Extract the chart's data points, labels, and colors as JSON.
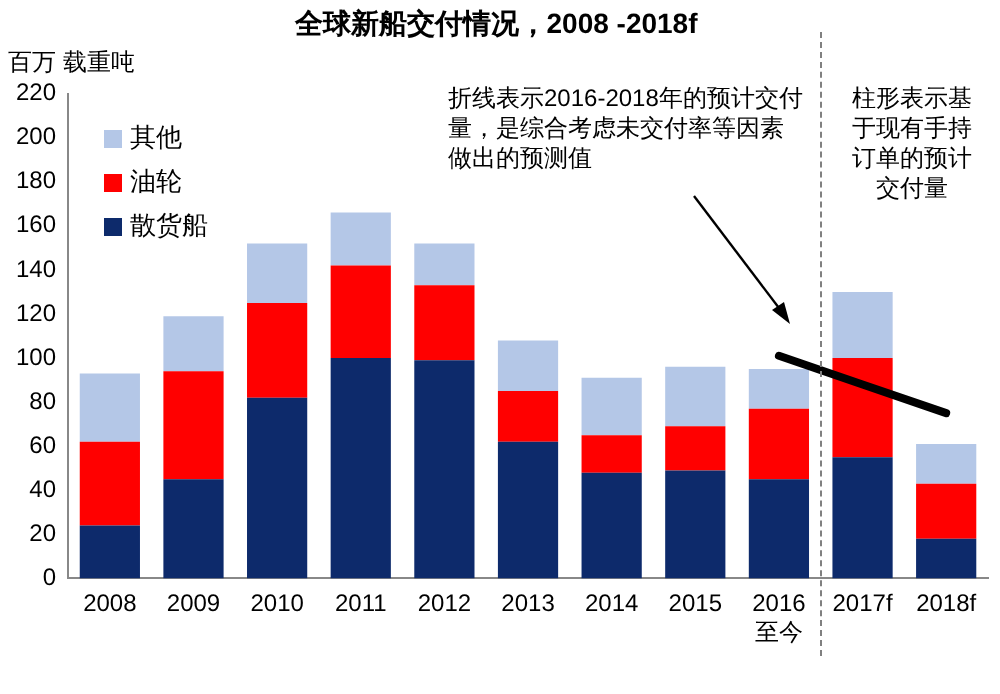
{
  "chart_data": {
    "type": "bar",
    "title": "全球新船交付情况，2008 -2018f",
    "ylabel": "百万 载重吨",
    "categories": [
      "2008",
      "2009",
      "2010",
      "2011",
      "2012",
      "2013",
      "2014",
      "2015",
      "2016\n至今",
      "2017f",
      "2018f"
    ],
    "stacked": true,
    "series": [
      {
        "name": "散货船",
        "color": "#0d2a6b",
        "values": [
          24,
          45,
          82,
          100,
          99,
          62,
          48,
          49,
          45,
          55,
          18
        ]
      },
      {
        "name": "油轮",
        "color": "#ff0000",
        "values": [
          38,
          49,
          43,
          42,
          34,
          23,
          17,
          20,
          32,
          45,
          25
        ]
      },
      {
        "name": "其他",
        "color": "#b4c7e7",
        "values": [
          31,
          25,
          27,
          24,
          19,
          23,
          26,
          27,
          18,
          30,
          18
        ]
      },
      {
        "type": "line",
        "color": "#000000",
        "values": [
          null,
          null,
          null,
          null,
          null,
          null,
          null,
          null,
          101,
          88,
          75
        ]
      }
    ],
    "ylim": [
      0,
      220
    ],
    "yticks": [
      0,
      20,
      40,
      60,
      80,
      100,
      120,
      140,
      160,
      180,
      200,
      220
    ],
    "grid": false,
    "legend": "top left",
    "marker": "none",
    "annotations": [
      "折线表示2016-2018年的预计交付量，是综合考虑未交付率等因素做出的预测值",
      "柱形表示基于现有手持订单的预计交付量"
    ]
  }
}
